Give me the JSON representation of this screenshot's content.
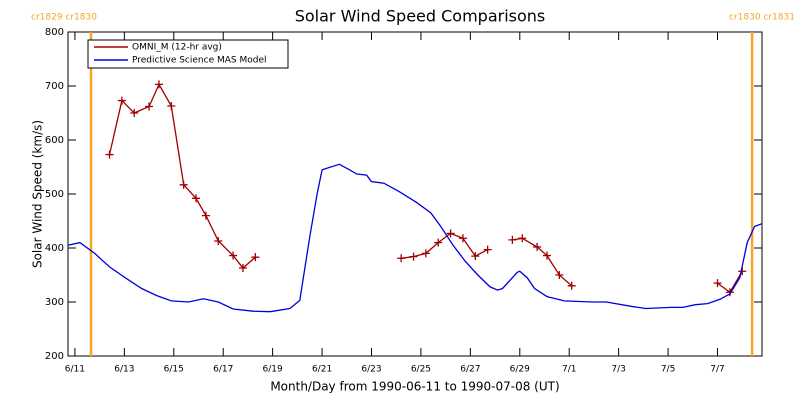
{
  "chart_data": {
    "type": "line",
    "title": "Solar Wind Speed Comparisons",
    "xlabel": "Month/Day from 1990-06-11 to 1990-07-08 (UT)",
    "ylabel": "Solar Wind Speed (km/s)",
    "xlim": [
      -0.28,
      27.8
    ],
    "ylim": [
      200,
      800
    ],
    "yticks": [
      200,
      300,
      400,
      500,
      600,
      700,
      800
    ],
    "xticks": [
      {
        "value": 0,
        "label": "6/11"
      },
      {
        "value": 2,
        "label": "6/13"
      },
      {
        "value": 4,
        "label": "6/15"
      },
      {
        "value": 6,
        "label": "6/17"
      },
      {
        "value": 8,
        "label": "6/19"
      },
      {
        "value": 10,
        "label": "6/21"
      },
      {
        "value": 12,
        "label": "6/23"
      },
      {
        "value": 14,
        "label": "6/25"
      },
      {
        "value": 16,
        "label": "6/27"
      },
      {
        "value": 18,
        "label": "6/29"
      },
      {
        "value": 20,
        "label": "7/1"
      },
      {
        "value": 22,
        "label": "7/3"
      },
      {
        "value": 24,
        "label": "7/5"
      },
      {
        "value": 26,
        "label": "7/7"
      }
    ],
    "legend": "upper left",
    "boundaries": {
      "color": "#f5a623",
      "items": [
        {
          "x": 0.65,
          "label": "cr1829 cr1830"
        },
        {
          "x": 27.4,
          "label": "cr1830 cr1831"
        }
      ]
    },
    "series": [
      {
        "name": "OMNI_M (12-hr avg)",
        "color": "#a00000",
        "marker": "plus",
        "x": [
          1.4,
          1.9,
          2.4,
          3.0,
          3.4,
          3.9,
          4.4,
          4.9,
          5.3,
          5.8,
          6.4,
          6.8,
          7.3,
          null,
          13.2,
          13.7,
          14.2,
          14.7,
          15.2,
          15.7,
          16.2,
          16.7,
          null,
          17.7,
          18.1,
          18.7,
          19.1,
          19.6,
          20.1,
          null,
          26.0,
          26.5,
          27.0
        ],
        "values": [
          573,
          673,
          650,
          662,
          703,
          663,
          517,
          492,
          460,
          413,
          386,
          363,
          383,
          null,
          381,
          384,
          390,
          410,
          427,
          418,
          385,
          397,
          null,
          415,
          418,
          402,
          386,
          350,
          330,
          null,
          335,
          318,
          357
        ]
      },
      {
        "name": "Predictive Science MAS Model",
        "color": "#0000e0",
        "marker": "none",
        "x": [
          -0.28,
          0.2,
          0.8,
          1.4,
          2.1,
          2.7,
          3.3,
          3.9,
          4.6,
          5.2,
          5.8,
          6.4,
          7.2,
          7.9,
          8.7,
          9.1,
          9.5,
          9.8,
          10.0,
          10.7,
          11.1,
          11.4,
          11.8,
          12.0,
          12.5,
          13.1,
          13.8,
          14.4,
          14.8,
          15.3,
          15.8,
          16.3,
          16.8,
          17.1,
          17.3,
          17.6,
          17.9,
          18.0,
          18.3,
          18.6,
          19.1,
          19.8,
          20.9,
          21.5,
          22.5,
          23.1,
          24.1,
          24.6,
          25.1,
          25.6,
          26.1,
          26.5,
          26.9,
          27.2,
          27.5,
          27.8
        ],
        "values": [
          405,
          410,
          390,
          365,
          343,
          325,
          312,
          302,
          300,
          306,
          300,
          287,
          283,
          282,
          288,
          303,
          420,
          500,
          545,
          555,
          545,
          537,
          535,
          523,
          520,
          505,
          485,
          465,
          440,
          405,
          375,
          350,
          328,
          322,
          325,
          340,
          355,
          357,
          345,
          325,
          310,
          302,
          300,
          300,
          292,
          288,
          290,
          290,
          295,
          297,
          305,
          315,
          345,
          410,
          440,
          445
        ]
      }
    ]
  }
}
